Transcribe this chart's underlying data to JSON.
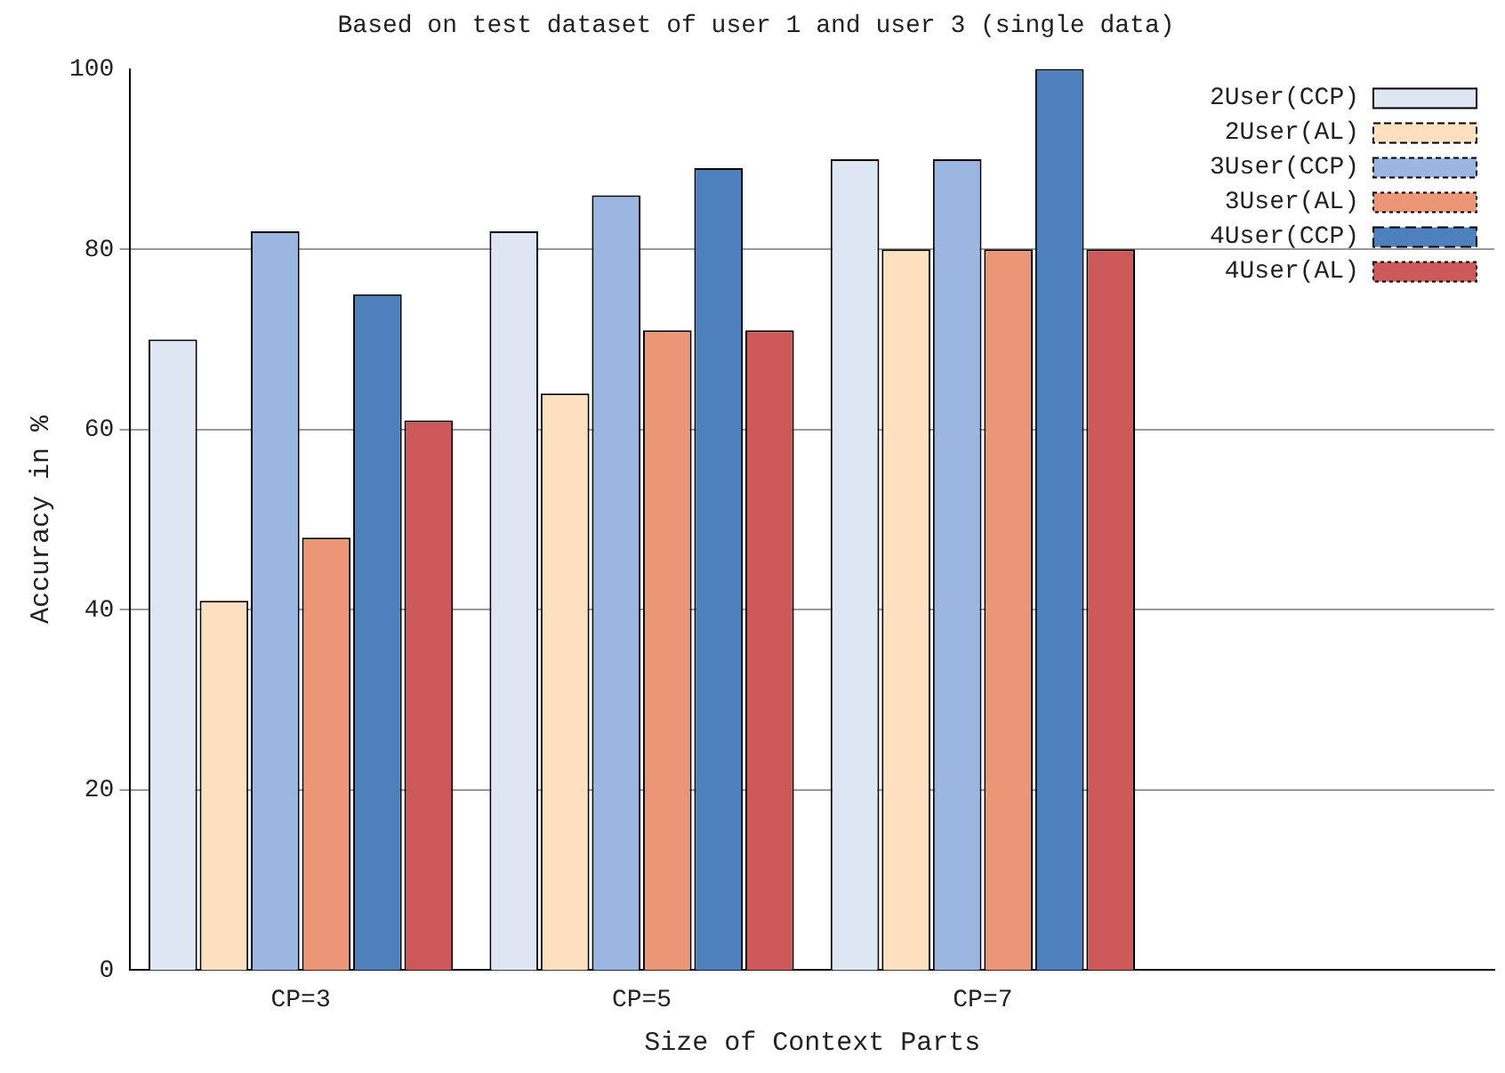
{
  "chart_data": {
    "type": "bar",
    "title": "Based on test dataset of user 1 and user 3 (single data)",
    "xlabel": "Size of Context Parts",
    "ylabel": "Accuracy in %",
    "categories": [
      "CP=3",
      "CP=5",
      "CP=7",
      null
    ],
    "series": [
      {
        "name": "2User(CCP)",
        "color": "#dfe6f3",
        "values": [
          70,
          82,
          90,
          null
        ]
      },
      {
        "name": "2User(AL)",
        "color": "#fde0c0",
        "values": [
          41,
          64,
          80,
          null
        ]
      },
      {
        "name": "3User(CCP)",
        "color": "#9bb6e0",
        "values": [
          82,
          86,
          90,
          null
        ]
      },
      {
        "name": "3User(AL)",
        "color": "#ea9677",
        "values": [
          48,
          71,
          80,
          null
        ]
      },
      {
        "name": "4User(CCP)",
        "color": "#4e80bd",
        "values": [
          75,
          89,
          100,
          null
        ]
      },
      {
        "name": "4User(AL)",
        "color": "#cc5a5a",
        "values": [
          61,
          71,
          80,
          null
        ]
      }
    ],
    "ylim": [
      0,
      100
    ],
    "yticks": [
      0,
      20,
      40,
      60,
      80,
      100
    ],
    "grid": "y",
    "legend": "top right"
  }
}
